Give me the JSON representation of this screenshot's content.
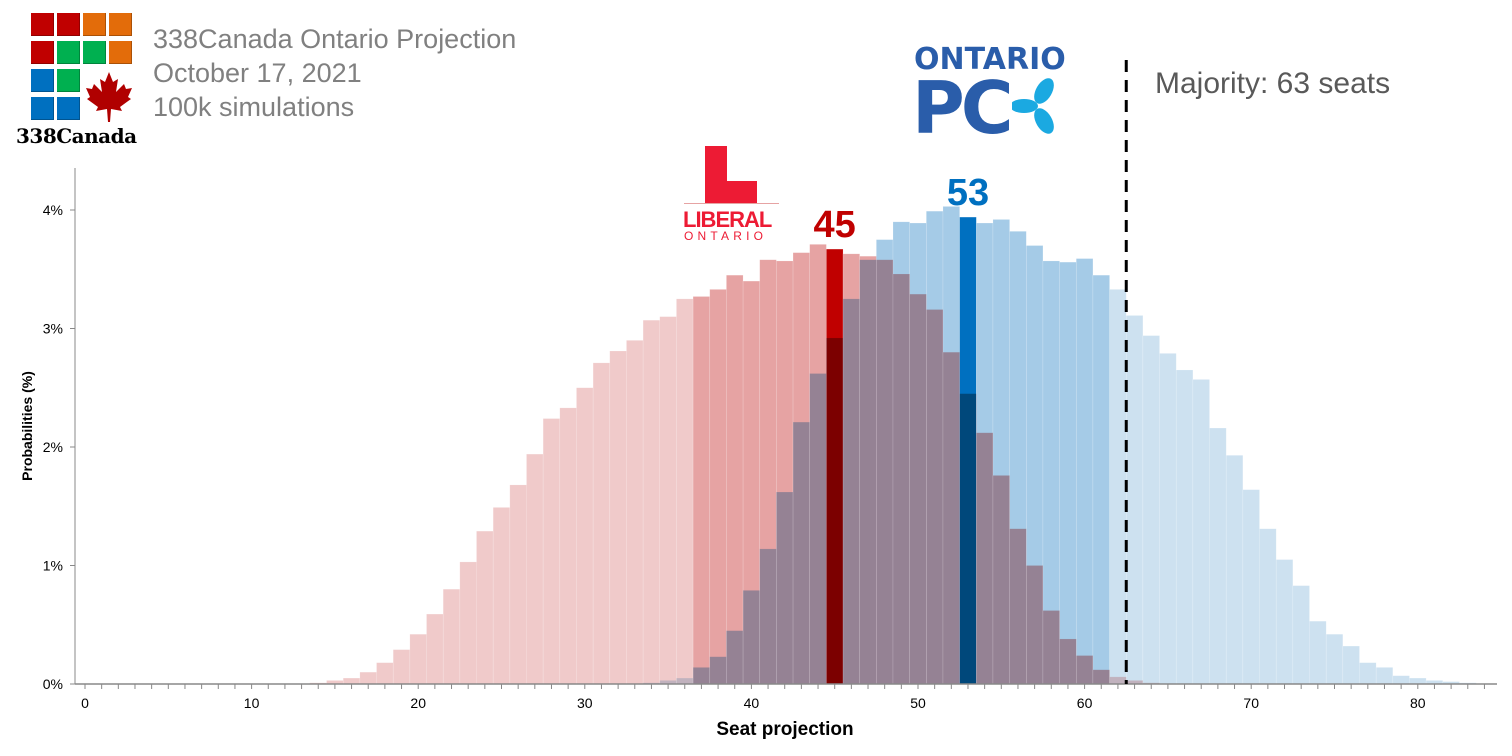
{
  "header": {
    "title": "338Canada Ontario Projection",
    "date": "October 17, 2021",
    "simulations": "100k simulations",
    "brand": "338Canada"
  },
  "logos": {
    "liberal": {
      "line1": "LIBERAL",
      "line2": "ONTARIO",
      "color": "#ED1B34"
    },
    "pc": {
      "line1": "ONTARIO",
      "line2": "PC",
      "color": "#2A5DAA",
      "leaf_color": "#1BA9E1"
    }
  },
  "majority_label": "Majority: 63 seats",
  "chart_data": {
    "type": "bar",
    "title": "338Canada Ontario Projection",
    "xlabel": "Seat projection",
    "ylabel": "Probabilities (%)",
    "xlim": [
      0,
      84
    ],
    "ylim": [
      0,
      4.4
    ],
    "x_ticks": [
      "0",
      "10",
      "20",
      "30",
      "40",
      "50",
      "60",
      "70",
      "80"
    ],
    "x_tick_values": [
      0,
      10,
      20,
      30,
      40,
      50,
      60,
      70,
      80
    ],
    "y_ticks": [
      "0%",
      "1%",
      "2%",
      "3%",
      "4%"
    ],
    "y_tick_values": [
      0,
      1,
      2,
      3,
      4
    ],
    "grid": false,
    "majority_threshold": 62.5,
    "likely_range": [
      37,
      61
    ],
    "series": [
      {
        "name": "Ontario Liberal",
        "median": 45,
        "median_label": "45",
        "colors": {
          "light": "#F0CACA",
          "mid": "#E6A3A3",
          "median": "#C00000"
        },
        "values": [
          0,
          0,
          0,
          0,
          0,
          0,
          0,
          0,
          0,
          0,
          0,
          0,
          0,
          0,
          0.01,
          0.03,
          0.05,
          0.1,
          0.18,
          0.29,
          0.42,
          0.59,
          0.8,
          1.03,
          1.29,
          1.49,
          1.68,
          1.94,
          2.24,
          2.33,
          2.5,
          2.71,
          2.81,
          2.9,
          3.07,
          3.1,
          3.25,
          3.27,
          3.33,
          3.45,
          3.4,
          3.58,
          3.57,
          3.64,
          3.71,
          3.67,
          3.63,
          3.61,
          3.58,
          3.46,
          3.29,
          3.16,
          2.8,
          2.45,
          2.12,
          1.76,
          1.31,
          1.0,
          0.62,
          0.38,
          0.24,
          0.12,
          0.06,
          0.03,
          0.01,
          0,
          0,
          0,
          0,
          0,
          0,
          0,
          0,
          0,
          0,
          0,
          0,
          0,
          0,
          0,
          0,
          0,
          0,
          0,
          0
        ]
      },
      {
        "name": "Ontario PC",
        "median": 53,
        "median_label": "53",
        "colors": {
          "light": "#CDE1F0",
          "mid": "#A5CBE7",
          "median": "#0070C0"
        },
        "values": [
          0,
          0,
          0,
          0,
          0,
          0,
          0,
          0,
          0,
          0,
          0,
          0,
          0,
          0,
          0,
          0,
          0,
          0,
          0,
          0,
          0,
          0,
          0,
          0,
          0,
          0,
          0,
          0,
          0,
          0,
          0,
          0,
          0,
          0,
          0.01,
          0.03,
          0.05,
          0.14,
          0.23,
          0.45,
          0.79,
          1.14,
          1.62,
          2.21,
          2.62,
          2.92,
          3.25,
          3.58,
          3.75,
          3.9,
          3.89,
          3.99,
          4.03,
          3.94,
          3.89,
          3.92,
          3.82,
          3.7,
          3.57,
          3.56,
          3.59,
          3.45,
          3.33,
          3.11,
          2.94,
          2.79,
          2.65,
          2.57,
          2.16,
          1.93,
          1.64,
          1.31,
          1.05,
          0.83,
          0.53,
          0.42,
          0.32,
          0.18,
          0.14,
          0.07,
          0.05,
          0.03,
          0.02,
          0.01,
          0
        ]
      }
    ]
  }
}
